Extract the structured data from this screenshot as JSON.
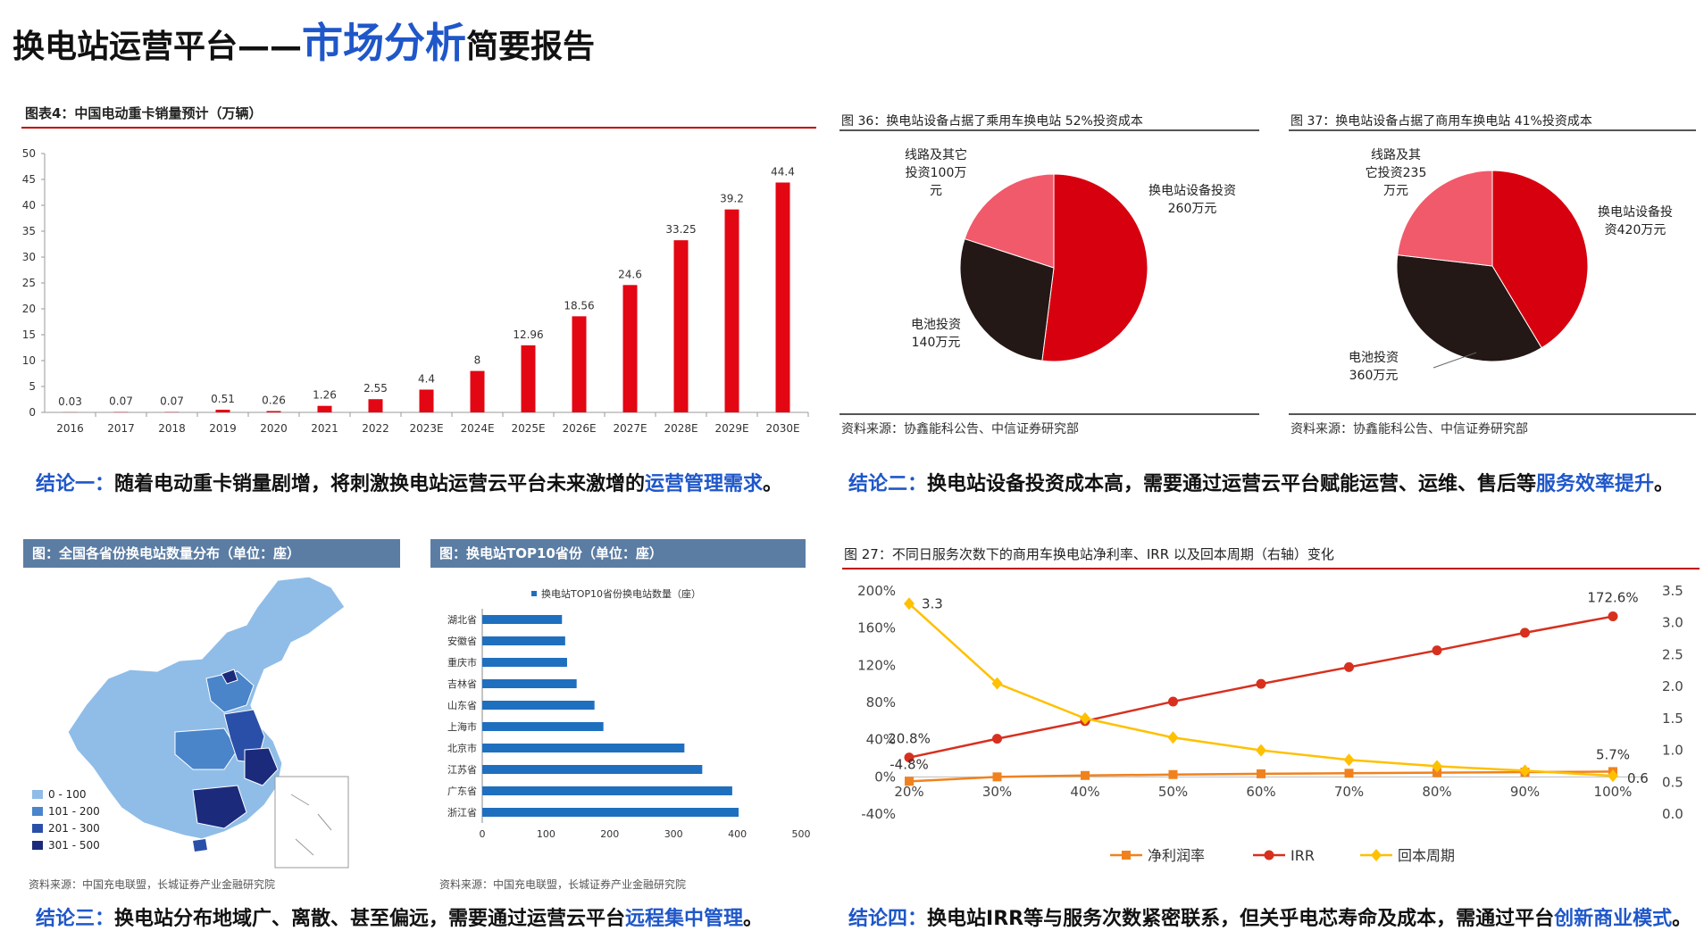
{
  "header": {
    "title_prefix": "换电站运营平台——",
    "title_highlight": "市场分析",
    "title_suffix": "简要报告"
  },
  "chart_data": [
    {
      "type": "bar",
      "title": "图表4：中国电动重卡销量预计（万辆）",
      "categories": [
        "2016",
        "2017",
        "2018",
        "2019",
        "2020",
        "2021",
        "2022",
        "2023E",
        "2024E",
        "2025E",
        "2026E",
        "2027E",
        "2028E",
        "2029E",
        "2030E"
      ],
      "values": [
        0.03,
        0.07,
        0.07,
        0.51,
        0.26,
        1.26,
        2.55,
        4.4,
        8,
        12.96,
        18.56,
        24.6,
        33.25,
        39.2,
        44.4
      ],
      "labels": [
        "0.03",
        "0.07",
        "0.07",
        "0.51",
        "0.26",
        "1.26",
        "2.55",
        "4.4",
        "8",
        "12.96",
        "18.56",
        "24.6",
        "33.25",
        "39.2",
        "44.4"
      ],
      "ylim": [
        0,
        50
      ],
      "yticks": [
        0,
        5,
        10,
        15,
        20,
        25,
        30,
        35,
        40,
        45,
        50
      ],
      "color": "#e30613",
      "grid": false
    },
    {
      "type": "pie",
      "title": "图 36：换电站设备占据了乘用车换电站 52%投资成本",
      "slices": [
        {
          "label_lines": [
            "换电站设备投资",
            "260万元"
          ],
          "value": 260,
          "color": "#d7000f"
        },
        {
          "label_lines": [
            "电池投资",
            "140万元"
          ],
          "value": 140,
          "color": "#231815"
        },
        {
          "label_lines": [
            "线路及其它",
            "投资100万",
            "元"
          ],
          "value": 100,
          "color": "#f15a6b"
        }
      ],
      "source": "资料来源：协鑫能科公告、中信证券研究部"
    },
    {
      "type": "pie",
      "title": "图 37：换电站设备占据了商用车换电站 41%投资成本",
      "slices": [
        {
          "label_lines": [
            "换电站设备投",
            "资420万元"
          ],
          "value": 420,
          "color": "#d7000f"
        },
        {
          "label_lines": [
            "电池投资",
            "360万元"
          ],
          "value": 360,
          "color": "#231815"
        },
        {
          "label_lines": [
            "线路及其",
            "它投资235",
            "万元"
          ],
          "value": 235,
          "color": "#f15a6b"
        }
      ],
      "source": "资料来源：协鑫能科公告、中信证券研究部"
    },
    {
      "type": "bar",
      "orientation": "horizontal",
      "title": "图：换电站TOP10省份（单位：座）",
      "legend": "换电站TOP10省份换电站数量（座）",
      "categories": [
        "湖北省",
        "安徽省",
        "重庆市",
        "吉林省",
        "山东省",
        "上海市",
        "北京市",
        "江苏省",
        "广东省",
        "浙江省"
      ],
      "values": [
        125,
        130,
        133,
        148,
        176,
        190,
        317,
        345,
        392,
        402
      ],
      "xlim": [
        0,
        500
      ],
      "xticks": [
        0,
        100,
        200,
        300,
        400,
        500
      ],
      "color": "#1f6fbf",
      "source": "资料来源：中国充电联盟，长城证券产业金融研究院"
    },
    {
      "type": "line",
      "title": "图 27：不同日服务次数下的商用车换电站净利率、IRR 以及回本周期（右轴）变化",
      "categories": [
        "20%",
        "30%",
        "40%",
        "50%",
        "60%",
        "70%",
        "80%",
        "90%",
        "100%"
      ],
      "y_left_ticks": [
        "-40%",
        "0%",
        "40%",
        "80%",
        "120%",
        "160%",
        "200%"
      ],
      "y_left_lim": [
        -40,
        200
      ],
      "y_right_ticks": [
        "0.0",
        "0.5",
        "1.0",
        "1.5",
        "2.0",
        "2.5",
        "3.0",
        "3.5"
      ],
      "y_right_lim": [
        0,
        3.5
      ],
      "series": [
        {
          "name": "净利润率",
          "axis": "left",
          "color": "#f0821e",
          "marker": "square",
          "values": [
            -4.8,
            0,
            1.5,
            2.5,
            3.3,
            3.9,
            4.5,
            5.1,
            5.7
          ]
        },
        {
          "name": "IRR",
          "axis": "left",
          "color": "#d7301f",
          "marker": "circle",
          "values": [
            20.8,
            41,
            60,
            81,
            100,
            118,
            136,
            155,
            172.6
          ]
        },
        {
          "name": "回本周期",
          "axis": "right",
          "color": "#ffc000",
          "marker": "diamond",
          "values": [
            3.3,
            2.05,
            1.5,
            1.2,
            1.0,
            0.85,
            0.75,
            0.68,
            0.6
          ]
        }
      ],
      "data_labels": [
        "3.3",
        "20.8%",
        "-4.8%",
        "172.6%",
        "5.7%",
        "0.6"
      ]
    }
  ],
  "map": {
    "title": "图：全国各省份换电站数量分布（单位：座）",
    "legend": [
      {
        "label": "0 - 100",
        "color": "#8fbde8"
      },
      {
        "label": "101 - 200",
        "color": "#4a84c9"
      },
      {
        "label": "201 - 300",
        "color": "#2a4fa8"
      },
      {
        "label": "301 - 500",
        "color": "#1b2a7a"
      }
    ],
    "source": "资料来源：中国充电联盟，长城证券产业金融研究院"
  },
  "conclusions": {
    "c1_tag": "结论一：",
    "c1_text": "随着电动重卡销量剧增，将刺激换电站运营云平台未来激增的",
    "c1_hl": "运营管理需求",
    "c1_end": "。",
    "c2_tag": "结论二：",
    "c2_text": "换电站设备投资成本高，需要通过运营云平台赋能运营、运维、售后等",
    "c2_hl": "服务效率提升",
    "c2_end": "。",
    "c3_tag": "结论三：",
    "c3_text": "换电站分布地域广、离散、甚至偏远，需要通过运营云平台",
    "c3_hl": "远程集中管理",
    "c3_end": "。",
    "c4_tag": "结论四：",
    "c4_text": "换电站IRR等与服务次数紧密联系，但关乎电芯寿命及成本，需通过平台",
    "c4_hl": "创新商业模式",
    "c4_end": "。"
  }
}
